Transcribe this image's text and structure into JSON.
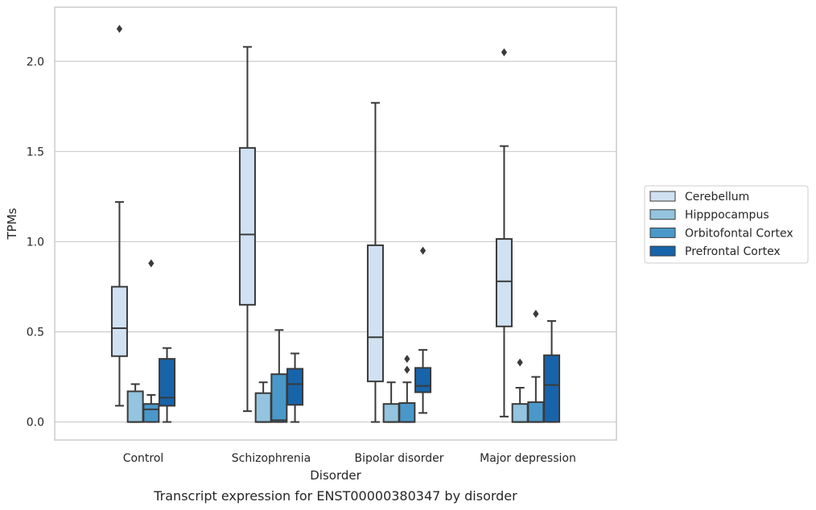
{
  "chart_data": {
    "type": "box",
    "caption": "Transcript expression for ENST00000380347 by disorder",
    "xlabel": "Disorder",
    "ylabel": "TPMs",
    "ylim": [
      -0.1,
      2.3
    ],
    "yticks": [
      "0.0",
      "0.5",
      "1.0",
      "1.5",
      "2.0"
    ],
    "grid": true,
    "legend_position": "right",
    "categories": [
      "Control",
      "Schizophrenia",
      "Bipolar disorder",
      "Major depression"
    ],
    "series": [
      {
        "name": "Cerebellum",
        "color": "#d0e1f2",
        "boxes": [
          {
            "whislo": 0.09,
            "q1": 0.365,
            "med": 0.52,
            "q3": 0.75,
            "whishi": 1.22,
            "fliers": [
              2.18
            ]
          },
          {
            "whislo": 0.06,
            "q1": 0.65,
            "med": 1.04,
            "q3": 1.52,
            "whishi": 2.08,
            "fliers": []
          },
          {
            "whislo": 0.0,
            "q1": 0.225,
            "med": 0.47,
            "q3": 0.98,
            "whishi": 1.77,
            "fliers": []
          },
          {
            "whislo": 0.03,
            "q1": 0.53,
            "med": 0.78,
            "q3": 1.015,
            "whishi": 1.53,
            "fliers": [
              2.05
            ]
          }
        ]
      },
      {
        "name": "Hipppocampus",
        "color": "#94c4df",
        "boxes": [
          {
            "whislo": 0.0,
            "q1": 0.0,
            "med": 0.0,
            "q3": 0.17,
            "whishi": 0.21,
            "fliers": []
          },
          {
            "whislo": 0.0,
            "q1": 0.0,
            "med": 0.0,
            "q3": 0.16,
            "whishi": 0.22,
            "fliers": []
          },
          {
            "whislo": 0.0,
            "q1": 0.0,
            "med": 0.0,
            "q3": 0.1,
            "whishi": 0.22,
            "fliers": []
          },
          {
            "whislo": 0.0,
            "q1": 0.0,
            "med": 0.0,
            "q3": 0.1,
            "whishi": 0.19,
            "fliers": [
              0.33
            ]
          }
        ]
      },
      {
        "name": "Orbitofontal Cortex",
        "color": "#4a98c9",
        "boxes": [
          {
            "whislo": 0.0,
            "q1": 0.0,
            "med": 0.07,
            "q3": 0.1,
            "whishi": 0.15,
            "fliers": [
              0.88
            ]
          },
          {
            "whislo": 0.0,
            "q1": 0.0,
            "med": 0.01,
            "q3": 0.265,
            "whishi": 0.51,
            "fliers": []
          },
          {
            "whislo": 0.0,
            "q1": 0.0,
            "med": 0.0,
            "q3": 0.105,
            "whishi": 0.22,
            "fliers": [
              0.29,
              0.35
            ]
          },
          {
            "whislo": 0.0,
            "q1": 0.0,
            "med": 0.0,
            "q3": 0.11,
            "whishi": 0.25,
            "fliers": [
              0.6
            ]
          }
        ]
      },
      {
        "name": "Prefrontal Cortex",
        "color": "#1764ab",
        "boxes": [
          {
            "whislo": 0.0,
            "q1": 0.09,
            "med": 0.135,
            "q3": 0.35,
            "whishi": 0.41,
            "fliers": []
          },
          {
            "whislo": 0.0,
            "q1": 0.095,
            "med": 0.21,
            "q3": 0.295,
            "whishi": 0.38,
            "fliers": []
          },
          {
            "whislo": 0.05,
            "q1": 0.165,
            "med": 0.2,
            "q3": 0.3,
            "whishi": 0.4,
            "fliers": [
              0.95
            ]
          },
          {
            "whislo": 0.0,
            "q1": 0.0,
            "med": 0.205,
            "q3": 0.37,
            "whishi": 0.56,
            "fliers": []
          }
        ]
      }
    ]
  }
}
